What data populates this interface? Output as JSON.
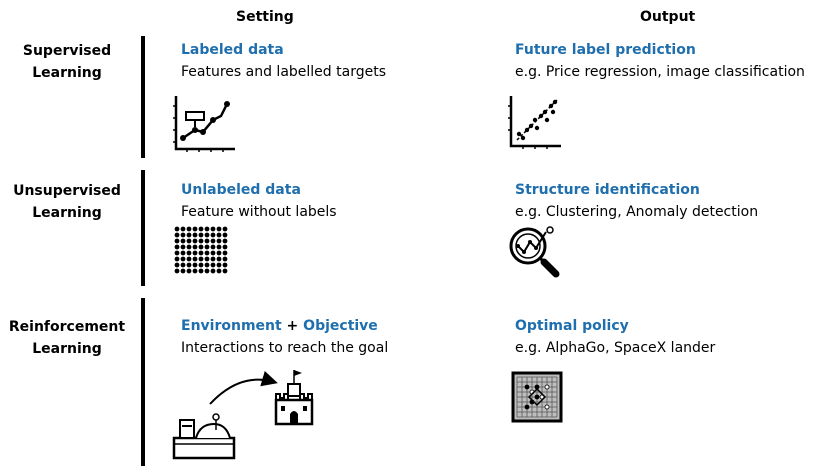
{
  "headers": {
    "setting": "Setting",
    "output": "Output"
  },
  "rows": [
    {
      "label_line1": "Supervised",
      "label_line2": "Learning",
      "setting_title": "Labeled data",
      "setting_desc": "Features and labelled targets",
      "output_title": "Future label prediction",
      "output_desc": "e.g. Price regression, image classification",
      "setting_icon": "line-chart-icon",
      "output_icon": "scatter-plot-icon"
    },
    {
      "label_line1": "Unsupervised",
      "label_line2": "Learning",
      "setting_title": "Unlabeled data",
      "setting_desc": "Feature without labels",
      "output_title": "Structure identification",
      "output_desc": "e.g. Clustering, Anomaly detection",
      "setting_icon": "dot-grid-icon",
      "output_icon": "magnifier-icon"
    },
    {
      "label_line1": "Reinforcement",
      "label_line2": "Learning",
      "setting_title_a": "Environment",
      "setting_title_plus": " + ",
      "setting_title_b": "Objective",
      "setting_desc": "Interactions to reach the goal",
      "output_title": "Optimal policy",
      "output_desc": "e.g. AlphaGo, SpaceX lander",
      "setting_icon": "knight-to-castle-icon",
      "output_icon": "go-board-icon"
    }
  ],
  "colors": {
    "accent": "#1f6fae",
    "text": "#000000"
  }
}
